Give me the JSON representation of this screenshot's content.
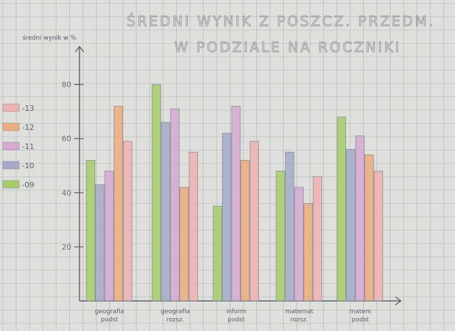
{
  "chart_data": {
    "type": "bar",
    "title_line1": "ŚREDNI WYNIK Z POSZCZ. PRZEDM.",
    "title_line2": "W PODZIALE NA ROCZNIKI",
    "ylabel": "średni wynik w %",
    "xlabel": "",
    "ylim": [
      0,
      90
    ],
    "yticks": [
      20,
      40,
      60,
      80
    ],
    "categories": [
      [
        "geografia",
        "podst"
      ],
      [
        "geografia",
        "rozsz."
      ],
      [
        "inform",
        "podst"
      ],
      [
        "matemat",
        "rozsz."
      ],
      [
        "matem",
        "podst"
      ]
    ],
    "series": [
      {
        "name": "-09",
        "color": "#a6cc6a",
        "values": [
          52,
          80,
          35,
          48,
          68
        ]
      },
      {
        "name": "-10",
        "color": "#a6aac9",
        "values": [
          43,
          66,
          62,
          55,
          56
        ]
      },
      {
        "name": "-11",
        "color": "#d6a9d3",
        "values": [
          48,
          71,
          72,
          42,
          61
        ]
      },
      {
        "name": "-12",
        "color": "#eeab7d",
        "values": [
          72,
          42,
          52,
          36,
          54
        ]
      },
      {
        "name": "-13",
        "color": "#eeb1b1",
        "values": [
          59,
          55,
          59,
          46,
          48
        ]
      }
    ],
    "legend_order": [
      "-13",
      "-12",
      "-11",
      "-10",
      "-09"
    ],
    "legend_position": "left",
    "grid": true
  }
}
